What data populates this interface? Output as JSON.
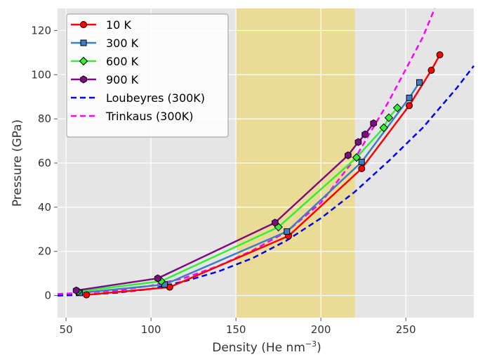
{
  "chart_data": {
    "type": "line",
    "xlabel": "Density (He nm",
    "xlabel_sup": "−3",
    "xlabel_suffix": ")",
    "ylabel": "Pressure (GPa)",
    "xlim": [
      45,
      290
    ],
    "ylim": [
      -10,
      130
    ],
    "xticks": [
      50,
      100,
      150,
      200,
      250
    ],
    "yticks": [
      0,
      20,
      40,
      60,
      80,
      100,
      120
    ],
    "grid": true,
    "legend_position": "top-left",
    "background": "#e5e5e5",
    "shaded_region": {
      "x_from": 150,
      "x_to": 220,
      "color": "#eadc97"
    },
    "series": [
      {
        "name": "10 K",
        "color": "#ff0000",
        "marker": "circle",
        "style": "solid",
        "points": [
          [
            62,
            0.3
          ],
          [
            111,
            3.8
          ],
          [
            181,
            27
          ],
          [
            224,
            57.5
          ],
          [
            252,
            86
          ],
          [
            265,
            102
          ],
          [
            270,
            109
          ]
        ]
      },
      {
        "name": "300 K",
        "color": "#3d7fc2",
        "marker": "square",
        "style": "solid",
        "points": [
          [
            58,
            1.2
          ],
          [
            108,
            5
          ],
          [
            180,
            29
          ],
          [
            224,
            60.5
          ],
          [
            252,
            89.5
          ],
          [
            258,
            96.5
          ]
        ]
      },
      {
        "name": "600 K",
        "color": "#33ee33",
        "marker": "diamond",
        "style": "solid",
        "points": [
          [
            57,
            1.8
          ],
          [
            106,
            6.5
          ],
          [
            175,
            31
          ],
          [
            221,
            62.5
          ],
          [
            237,
            76
          ],
          [
            240,
            80.5
          ],
          [
            245,
            85
          ]
        ]
      },
      {
        "name": "900 K",
        "color": "#7a0e80",
        "marker": "hexagon",
        "style": "solid",
        "points": [
          [
            56,
            2.3
          ],
          [
            104,
            7.8
          ],
          [
            173,
            33
          ],
          [
            216,
            63.5
          ],
          [
            222,
            69.5
          ],
          [
            226,
            73
          ],
          [
            231,
            78
          ]
        ]
      },
      {
        "name": "Loubeyres (300K)",
        "color": "#0000ee",
        "style": "dashed",
        "marker": "none",
        "points": [
          [
            45,
            0
          ],
          [
            60,
            0.3
          ],
          [
            80,
            1.3
          ],
          [
            100,
            3
          ],
          [
            120,
            6.5
          ],
          [
            140,
            11
          ],
          [
            160,
            17
          ],
          [
            180,
            25
          ],
          [
            200,
            35
          ],
          [
            220,
            47
          ],
          [
            240,
            61
          ],
          [
            260,
            76
          ],
          [
            280,
            94
          ],
          [
            290,
            104
          ]
        ]
      },
      {
        "name": "Trinkaus (300K)",
        "color": "#ff00ff",
        "style": "dashed",
        "marker": "none",
        "points": [
          [
            45,
            0.7
          ],
          [
            60,
            1.2
          ],
          [
            80,
            2.3
          ],
          [
            100,
            4.5
          ],
          [
            120,
            8
          ],
          [
            140,
            13.5
          ],
          [
            160,
            20.5
          ],
          [
            180,
            29
          ],
          [
            200,
            42
          ],
          [
            220,
            62
          ],
          [
            240,
            88
          ],
          [
            260,
            117
          ],
          [
            267,
            130
          ]
        ]
      }
    ]
  }
}
